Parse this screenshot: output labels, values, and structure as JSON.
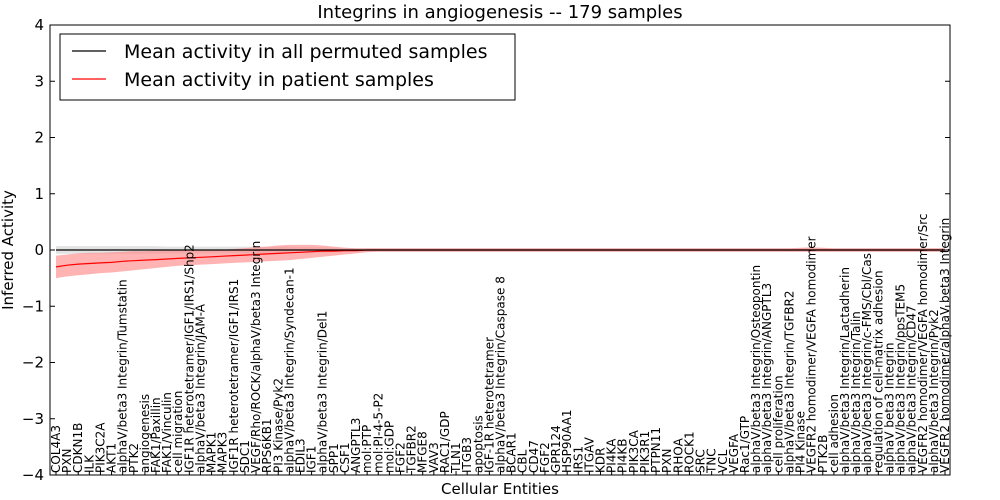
{
  "chart_data": {
    "type": "line",
    "title": "Integrins in angiogenesis -- 179 samples",
    "xlabel": "Cellular Entities",
    "ylabel": "Inferred Activity",
    "ylim": [
      -4,
      4
    ],
    "yticks": [
      -4,
      -3,
      -2,
      -1,
      0,
      1,
      2,
      3,
      4
    ],
    "legend_position": "top-left",
    "categories": [
      "COL4A3",
      "PXN",
      "CDKN1B",
      "ILK",
      "PIK3C2A",
      "AKT1",
      "alphaV/beta3 Integrin/Tumstatin",
      "PTK2",
      "angiogenesis",
      "FAK1/Paxillin",
      "FAK1/Vinculin",
      "cell migration",
      "IGF1R heterotetramer/IGF1/IRS1/Shp2",
      "alphaV/beta3 Integrin/JAM-A",
      "MAPK1",
      "MAPK3",
      "IGF1R heterotetramer/IGF1/IRS1",
      "SDC1",
      "VEGF/Rho/ROCK/alphaV/beta3 Integrin",
      "RPS6KB1",
      "PI3 Kinase/Pyk2",
      "alphaV/beta3 Integrin/Syndecan-1",
      "EDIL3",
      "IGF1",
      "alphaV/beta3 Integrin/Del1",
      "SPP1",
      "CSF1",
      "ANGPTL3",
      "mol:PTP",
      "mol:PI-4-5-P2",
      "mol:GDP",
      "FGF2",
      "TGFBR2",
      "MFGE8",
      "VAV3",
      "RAC1/GDP",
      "TLN1",
      "ITGB3",
      "apoptosis",
      "IGF-1R heterotetramer",
      "alphaV/beta3 Integrin/Caspase 8",
      "BCAR1",
      "CBL",
      "CD47",
      "FGF2",
      "GPR124",
      "HSP90AA1",
      "IRS1",
      "ITGAV",
      "KDR",
      "PI4KA",
      "PI4KB",
      "PIK3CA",
      "PIK3R1",
      "PTPN11",
      "PXN",
      "RHOA",
      "ROCK1",
      "SRC",
      "TNC",
      "VCL",
      "VEGFA",
      "Rac1/GTP",
      "alphaV/beta3 Integrin/Osteopontin",
      "alphaV/beta3 Integrin/ANGPTL3",
      "cell proliferation",
      "alphaV/beta3 Integrin/TGFBR2",
      "PI4 Kinase",
      "VEGFR2 homodimer/VEGFA homodimer",
      "PTK2B",
      "cell adhesion",
      "alphaV/beta3 Integrin/Lactadherin",
      "alphaV/beta3 Integrin/Talin",
      "alphaV/beta3 Integrin/c-FMS/Cbl/Cas",
      "regulation of cell-matrix adhesion",
      "alphaV beta3 Integrin",
      "alphaV/beta3 Integrin/ppsTEM5",
      "alphaV/beta3 Integrin/CD47",
      "VEGFR2 homodimer/VEGFA homodimer/Src",
      "alphaV/beta3 Integrin/Pyk2",
      "VEGFR2 homodimer/alphaV beta3 Integrin"
    ],
    "series": [
      {
        "name": "Mean activity in all permuted samples",
        "color": "#000000",
        "band_color": "#c0c0c0",
        "values": [
          0,
          0,
          0,
          0,
          0,
          0,
          0,
          0,
          0,
          0,
          0,
          0,
          0,
          0,
          0,
          0,
          0,
          0,
          0,
          0,
          0,
          0,
          0,
          0,
          0,
          0,
          0,
          0,
          0,
          0,
          0,
          0,
          0,
          0,
          0,
          0,
          0,
          0,
          0,
          0,
          0,
          0,
          0,
          0,
          0,
          0,
          0,
          0,
          0,
          0,
          0,
          0,
          0,
          0,
          0,
          0,
          0,
          0,
          0,
          0,
          0,
          0,
          0,
          0,
          0,
          0,
          0,
          0,
          0,
          0,
          0,
          0,
          0,
          0,
          0,
          0,
          0,
          0,
          0,
          0,
          0
        ],
        "band_lower": [
          -0.07,
          -0.07,
          -0.07,
          -0.07,
          -0.07,
          -0.07,
          -0.07,
          -0.07,
          -0.07,
          -0.07,
          -0.06,
          -0.06,
          -0.06,
          -0.06,
          -0.06,
          -0.06,
          -0.06,
          -0.06,
          -0.06,
          -0.06,
          -0.06,
          -0.06,
          -0.05,
          -0.05,
          -0.05,
          -0.04,
          -0.04,
          -0.03,
          -0.03,
          -0.03,
          -0.03,
          -0.03,
          -0.03,
          -0.03,
          -0.03,
          -0.03,
          -0.03,
          -0.03,
          -0.03,
          -0.03,
          -0.03,
          -0.03,
          -0.03,
          -0.03,
          -0.03,
          -0.03,
          -0.03,
          -0.03,
          -0.03,
          -0.03,
          -0.03,
          -0.03,
          -0.03,
          -0.03,
          -0.03,
          -0.03,
          -0.03,
          -0.03,
          -0.03,
          -0.03,
          -0.03,
          -0.03,
          -0.03,
          -0.03,
          -0.03,
          -0.03,
          -0.03,
          -0.03,
          -0.03,
          -0.03,
          -0.03,
          -0.03,
          -0.03,
          -0.03,
          -0.03,
          -0.03,
          -0.03,
          -0.03,
          -0.03,
          -0.03,
          -0.03
        ],
        "band_upper": [
          0.07,
          0.07,
          0.07,
          0.07,
          0.07,
          0.07,
          0.07,
          0.07,
          0.07,
          0.07,
          0.06,
          0.06,
          0.06,
          0.06,
          0.06,
          0.06,
          0.06,
          0.06,
          0.06,
          0.06,
          0.06,
          0.06,
          0.05,
          0.05,
          0.05,
          0.04,
          0.04,
          0.03,
          0.03,
          0.03,
          0.03,
          0.03,
          0.03,
          0.03,
          0.03,
          0.03,
          0.03,
          0.03,
          0.03,
          0.03,
          0.03,
          0.03,
          0.03,
          0.03,
          0.03,
          0.03,
          0.03,
          0.03,
          0.03,
          0.03,
          0.03,
          0.03,
          0.03,
          0.03,
          0.03,
          0.03,
          0.03,
          0.03,
          0.03,
          0.03,
          0.03,
          0.03,
          0.03,
          0.03,
          0.03,
          0.03,
          0.03,
          0.03,
          0.03,
          0.03,
          0.03,
          0.03,
          0.03,
          0.03,
          0.03,
          0.03,
          0.03,
          0.03,
          0.03,
          0.03,
          0.03
        ]
      },
      {
        "name": "Mean activity in patient samples",
        "color": "#ff0000",
        "band_color": "#ff8080",
        "values": [
          -0.3,
          -0.27,
          -0.25,
          -0.24,
          -0.23,
          -0.22,
          -0.2,
          -0.19,
          -0.18,
          -0.17,
          -0.16,
          -0.15,
          -0.14,
          -0.13,
          -0.12,
          -0.11,
          -0.1,
          -0.09,
          -0.08,
          -0.07,
          -0.06,
          -0.05,
          -0.04,
          -0.03,
          -0.02,
          -0.02,
          -0.01,
          -0.01,
          0,
          0,
          0,
          0,
          0,
          0,
          0,
          0,
          0,
          0,
          0,
          0,
          0,
          0,
          0,
          0,
          0,
          0,
          0,
          0,
          0,
          0,
          0,
          0,
          0,
          0,
          0,
          0,
          0,
          0,
          0,
          0,
          0,
          0,
          0,
          0,
          0,
          0,
          0,
          0,
          0,
          0,
          0,
          0,
          0,
          0,
          0,
          0,
          0,
          0,
          0,
          0,
          0
        ],
        "band_lower": [
          -0.5,
          -0.47,
          -0.45,
          -0.43,
          -0.41,
          -0.4,
          -0.38,
          -0.36,
          -0.34,
          -0.32,
          -0.3,
          -0.28,
          -0.27,
          -0.26,
          -0.25,
          -0.24,
          -0.23,
          -0.22,
          -0.21,
          -0.2,
          -0.19,
          -0.18,
          -0.16,
          -0.14,
          -0.12,
          -0.1,
          -0.08,
          -0.06,
          -0.04,
          -0.03,
          -0.03,
          -0.03,
          -0.03,
          -0.03,
          -0.03,
          -0.03,
          -0.03,
          -0.03,
          -0.03,
          -0.03,
          -0.03,
          -0.03,
          -0.03,
          -0.03,
          -0.03,
          -0.03,
          -0.03,
          -0.03,
          -0.03,
          -0.03,
          -0.03,
          -0.03,
          -0.03,
          -0.03,
          -0.03,
          -0.03,
          -0.03,
          -0.03,
          -0.03,
          -0.03,
          -0.03,
          -0.03,
          -0.03,
          -0.03,
          -0.03,
          -0.03,
          -0.03,
          -0.03,
          -0.03,
          -0.03,
          -0.03,
          -0.03,
          -0.03,
          -0.03,
          -0.03,
          -0.03,
          -0.03,
          -0.03,
          -0.03,
          -0.03,
          -0.03
        ],
        "band_upper": [
          -0.1,
          -0.08,
          -0.06,
          -0.05,
          -0.05,
          -0.04,
          -0.03,
          -0.02,
          -0.02,
          -0.01,
          -0.01,
          0,
          0,
          0,
          0,
          0,
          0.02,
          0.03,
          0.05,
          0.06,
          0.08,
          0.09,
          0.09,
          0.09,
          0.08,
          0.06,
          0.04,
          0.03,
          0.03,
          0.03,
          0.03,
          0.03,
          0.03,
          0.03,
          0.03,
          0.03,
          0.03,
          0.03,
          0.03,
          0.03,
          0.03,
          0.03,
          0.03,
          0.03,
          0.03,
          0.03,
          0.03,
          0.03,
          0.03,
          0.03,
          0.03,
          0.03,
          0.03,
          0.03,
          0.03,
          0.03,
          0.03,
          0.03,
          0.03,
          0.03,
          0.03,
          0.03,
          0.03,
          0.03,
          0.03,
          0.03,
          0.03,
          0.04,
          0.05,
          0.04,
          0.03,
          0.03,
          0.03,
          0.03,
          0.03,
          0.03,
          0.03,
          0.03,
          0.03,
          0.03,
          0.03
        ]
      }
    ]
  }
}
